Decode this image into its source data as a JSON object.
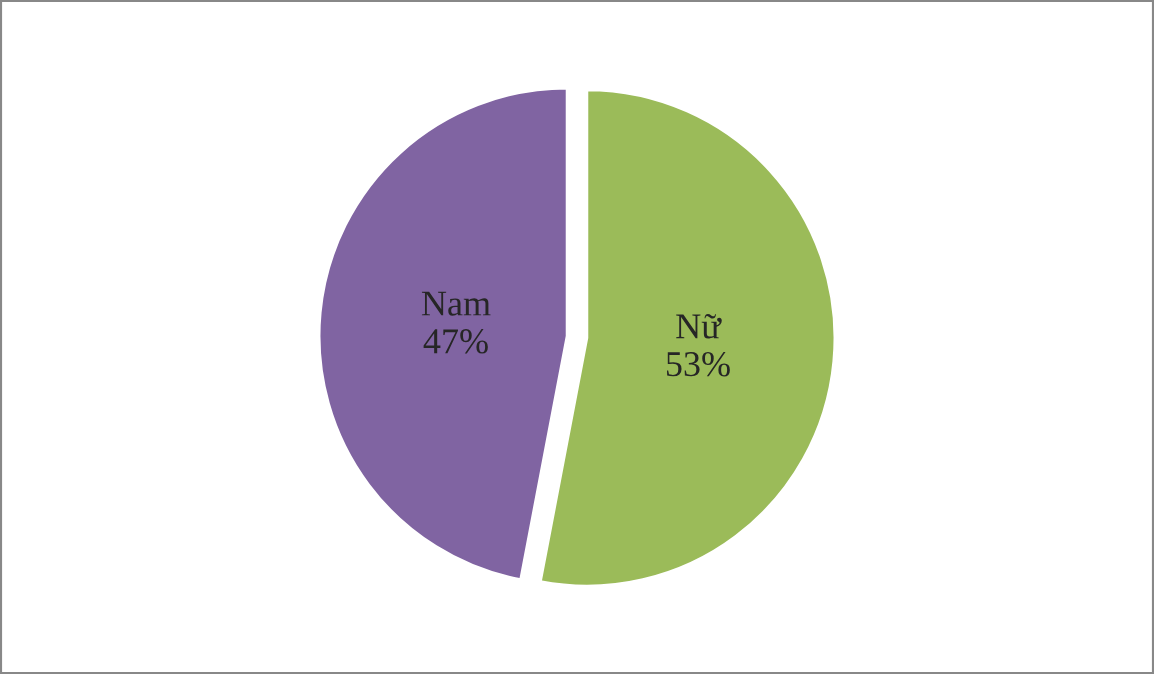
{
  "chart_data": {
    "type": "pie",
    "categories": [
      "Nữ",
      "Nam"
    ],
    "values": [
      53,
      47
    ],
    "colors": [
      "#9bbb59",
      "#8064a2"
    ],
    "value_labels": [
      "53%",
      "47%"
    ]
  }
}
